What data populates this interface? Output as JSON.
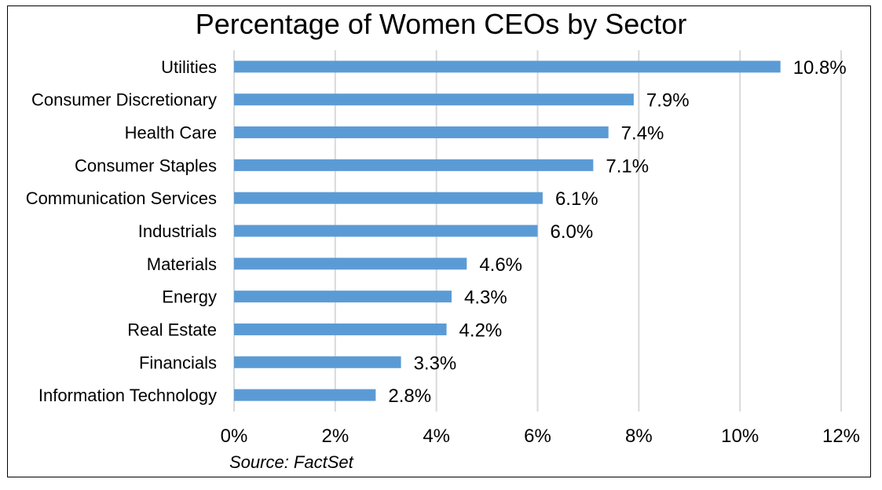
{
  "chart_data": {
    "type": "bar",
    "orientation": "horizontal",
    "title": "Percentage of Women CEOs by Sector",
    "categories": [
      "Utilities",
      "Consumer Discretionary",
      "Health Care",
      "Consumer Staples",
      "Communication Services",
      "Industrials",
      "Materials",
      "Energy",
      "Real Estate",
      "Financials",
      "Information Technology"
    ],
    "values": [
      10.8,
      7.9,
      7.4,
      7.1,
      6.1,
      6.0,
      4.6,
      4.3,
      4.2,
      3.3,
      2.8
    ],
    "value_labels": [
      "10.8%",
      "7.9%",
      "7.4%",
      "7.1%",
      "6.1%",
      "6.0%",
      "4.6%",
      "4.3%",
      "4.2%",
      "3.3%",
      "2.8%"
    ],
    "xlim": [
      0,
      12
    ],
    "xticks": [
      0,
      2,
      4,
      6,
      8,
      10,
      12
    ],
    "xtick_labels": [
      "0%",
      "2%",
      "4%",
      "6%",
      "8%",
      "10%",
      "12%"
    ],
    "grid": "vertical",
    "legend": "none",
    "bar_color": "#5B9BD5",
    "grid_color": "#D9D9D9"
  },
  "source": "Source: FactSet"
}
